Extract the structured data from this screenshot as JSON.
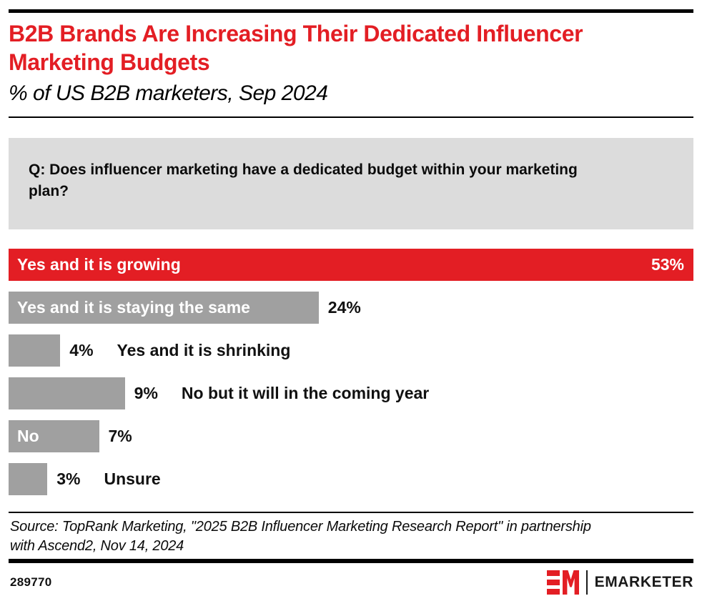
{
  "header": {
    "title": "B2B Brands Are Increasing Their Dedicated Influencer Marketing Budgets",
    "subtitle": "% of US B2B marketers, Sep 2024"
  },
  "question": {
    "text": "Q: Does influencer marketing have a dedicated budget within your marketing plan?"
  },
  "chart_data": {
    "type": "bar",
    "orientation": "horizontal",
    "title": "B2B Brands Are Increasing Their Dedicated Influencer Marketing Budgets",
    "subtitle": "% of US B2B marketers, Sep 2024",
    "unit": "% of respondents",
    "grid": false,
    "legend": "none",
    "max_scale_value": 53,
    "categories": [
      "Yes and it is growing",
      "Yes and it is staying the same",
      "Yes and it is shrinking",
      "No but it will in the coming year",
      "No",
      "Unsure"
    ],
    "values": [
      53,
      24,
      4,
      9,
      7,
      3
    ],
    "bars": [
      {
        "label": "Yes and it is growing",
        "value": 53,
        "display": "53%",
        "color": "#E31E24",
        "label_inside": true,
        "value_inside": true
      },
      {
        "label": "Yes and it is staying the same",
        "value": 24,
        "display": "24%",
        "color": "#A0A0A0",
        "label_inside": true,
        "value_inside": false
      },
      {
        "label": "Yes and it is shrinking",
        "value": 4,
        "display": "4%",
        "color": "#A0A0A0",
        "label_inside": false,
        "value_inside": false
      },
      {
        "label": "No but it will in the coming year",
        "value": 9,
        "display": "9%",
        "color": "#A0A0A0",
        "label_inside": false,
        "value_inside": false
      },
      {
        "label": "No",
        "value": 7,
        "display": "7%",
        "color": "#A0A0A0",
        "label_inside": true,
        "value_inside": false
      },
      {
        "label": "Unsure",
        "value": 3,
        "display": "3%",
        "color": "#A0A0A0",
        "label_inside": false,
        "value_inside": false
      }
    ]
  },
  "source": {
    "text": "Source: TopRank Marketing, \"2025 B2B Influencer Marketing Research Report\" in partnership with Ascend2, Nov 14, 2024"
  },
  "footer": {
    "chart_id": "289770",
    "brand_wordmark": "EMARKETER",
    "logo_icon": "em-monogram-icon"
  },
  "colors": {
    "accent_red": "#E31E24",
    "bar_gray": "#A0A0A0",
    "question_box_bg": "#DCDCDC",
    "rule_black": "#000000",
    "text_black": "#111111",
    "inside_label_white": "#FFFFFF"
  }
}
